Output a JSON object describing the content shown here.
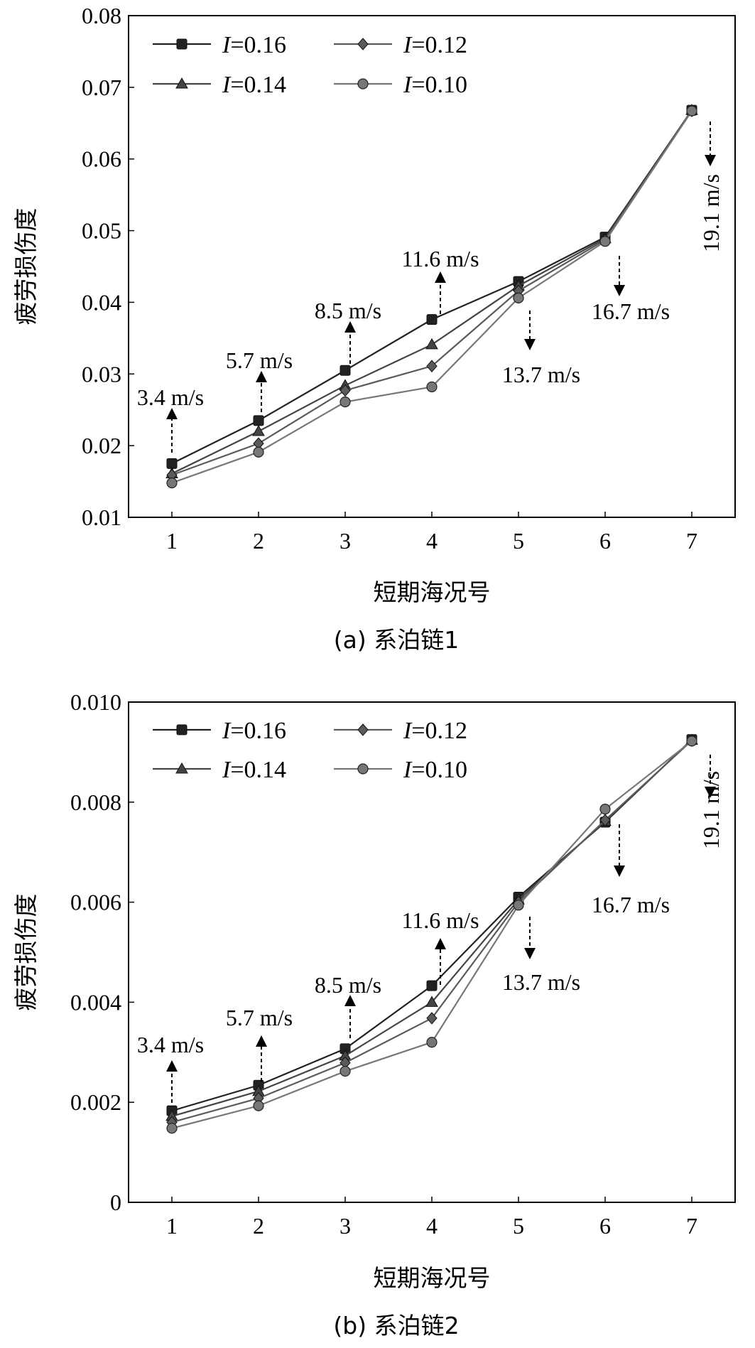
{
  "chart_data": [
    {
      "type": "line",
      "caption": "(a) 系泊链1",
      "xlabel": "短期海况号",
      "ylabel": "疲劳损伤度",
      "x": [
        1,
        2,
        3,
        4,
        5,
        6,
        7
      ],
      "xticks": [
        "1",
        "2",
        "3",
        "4",
        "5",
        "6",
        "7"
      ],
      "ylim": [
        0.01,
        0.08
      ],
      "yticks": [
        "0.01",
        "0.02",
        "0.03",
        "0.04",
        "0.05",
        "0.06",
        "0.07",
        "0.08"
      ],
      "legend_position": "top-left",
      "series": [
        {
          "name": "I=0.16",
          "symbol": "I",
          "value_text": "=0.16",
          "marker": "square",
          "color": "#222222",
          "values": [
            0.0175,
            0.0235,
            0.0305,
            0.0376,
            0.0429,
            0.0491,
            0.0668
          ]
        },
        {
          "name": "I=0.14",
          "symbol": "I",
          "value_text": "=0.14",
          "marker": "triangle",
          "color": "#444444",
          "values": [
            0.0161,
            0.022,
            0.0284,
            0.0341,
            0.0423,
            0.0489,
            0.0668
          ]
        },
        {
          "name": "I=0.12",
          "symbol": "I",
          "value_text": "=0.12",
          "marker": "diamond",
          "color": "#5a5a5a",
          "values": [
            0.0159,
            0.0203,
            0.0277,
            0.0311,
            0.0416,
            0.0487,
            0.0667
          ]
        },
        {
          "name": "I=0.10",
          "symbol": "I",
          "value_text": "=0.10",
          "marker": "circle",
          "color": "#777777",
          "values": [
            0.0148,
            0.0191,
            0.0261,
            0.0282,
            0.0406,
            0.0485,
            0.0667
          ]
        }
      ],
      "annotations": [
        {
          "text": "3.4 m/s",
          "x": 1,
          "direction": "up"
        },
        {
          "text": "5.7 m/s",
          "x": 2,
          "direction": "up"
        },
        {
          "text": "8.5 m/s",
          "x": 3,
          "direction": "up"
        },
        {
          "text": "11.6 m/s",
          "x": 4,
          "direction": "up"
        },
        {
          "text": "13.7 m/s",
          "x": 5,
          "direction": "down"
        },
        {
          "text": "16.7 m/s",
          "x": 6,
          "direction": "down"
        },
        {
          "text": "19.1 m/s",
          "x": 7,
          "direction": "down",
          "rotated": true
        }
      ]
    },
    {
      "type": "line",
      "caption": "(b) 系泊链2",
      "xlabel": "短期海况号",
      "ylabel": "疲劳损伤度",
      "x": [
        1,
        2,
        3,
        4,
        5,
        6,
        7
      ],
      "xticks": [
        "1",
        "2",
        "3",
        "4",
        "5",
        "6",
        "7"
      ],
      "ylim": [
        0,
        0.01
      ],
      "yticks": [
        "0",
        "0.002",
        "0.004",
        "0.006",
        "0.008",
        "0.010"
      ],
      "legend_position": "top-left",
      "series": [
        {
          "name": "I=0.16",
          "symbol": "I",
          "value_text": "=0.16",
          "marker": "square",
          "color": "#222222",
          "values": [
            0.00183,
            0.00234,
            0.00307,
            0.00433,
            0.0061,
            0.0076,
            0.00925
          ]
        },
        {
          "name": "I=0.14",
          "symbol": "I",
          "value_text": "=0.14",
          "marker": "triangle",
          "color": "#444444",
          "values": [
            0.00172,
            0.00222,
            0.00293,
            0.004,
            0.00605,
            0.00762,
            0.00924
          ]
        },
        {
          "name": "I=0.12",
          "symbol": "I",
          "value_text": "=0.12",
          "marker": "diamond",
          "color": "#5a5a5a",
          "values": [
            0.0016,
            0.00208,
            0.00279,
            0.00368,
            0.006,
            0.00764,
            0.00923
          ]
        },
        {
          "name": "I=0.10",
          "symbol": "I",
          "value_text": "=0.10",
          "marker": "circle",
          "color": "#777777",
          "values": [
            0.00148,
            0.00193,
            0.00262,
            0.0032,
            0.00594,
            0.00786,
            0.00922
          ]
        }
      ],
      "annotations": [
        {
          "text": "3.4 m/s",
          "x": 1,
          "direction": "up"
        },
        {
          "text": "5.7 m/s",
          "x": 2,
          "direction": "up"
        },
        {
          "text": "8.5 m/s",
          "x": 3,
          "direction": "up"
        },
        {
          "text": "11.6 m/s",
          "x": 4,
          "direction": "up"
        },
        {
          "text": "13.7 m/s",
          "x": 5,
          "direction": "down"
        },
        {
          "text": "16.7 m/s",
          "x": 6,
          "direction": "down"
        },
        {
          "text": "19.1 m/s",
          "x": 7,
          "direction": "down",
          "rotated": true
        }
      ]
    }
  ]
}
